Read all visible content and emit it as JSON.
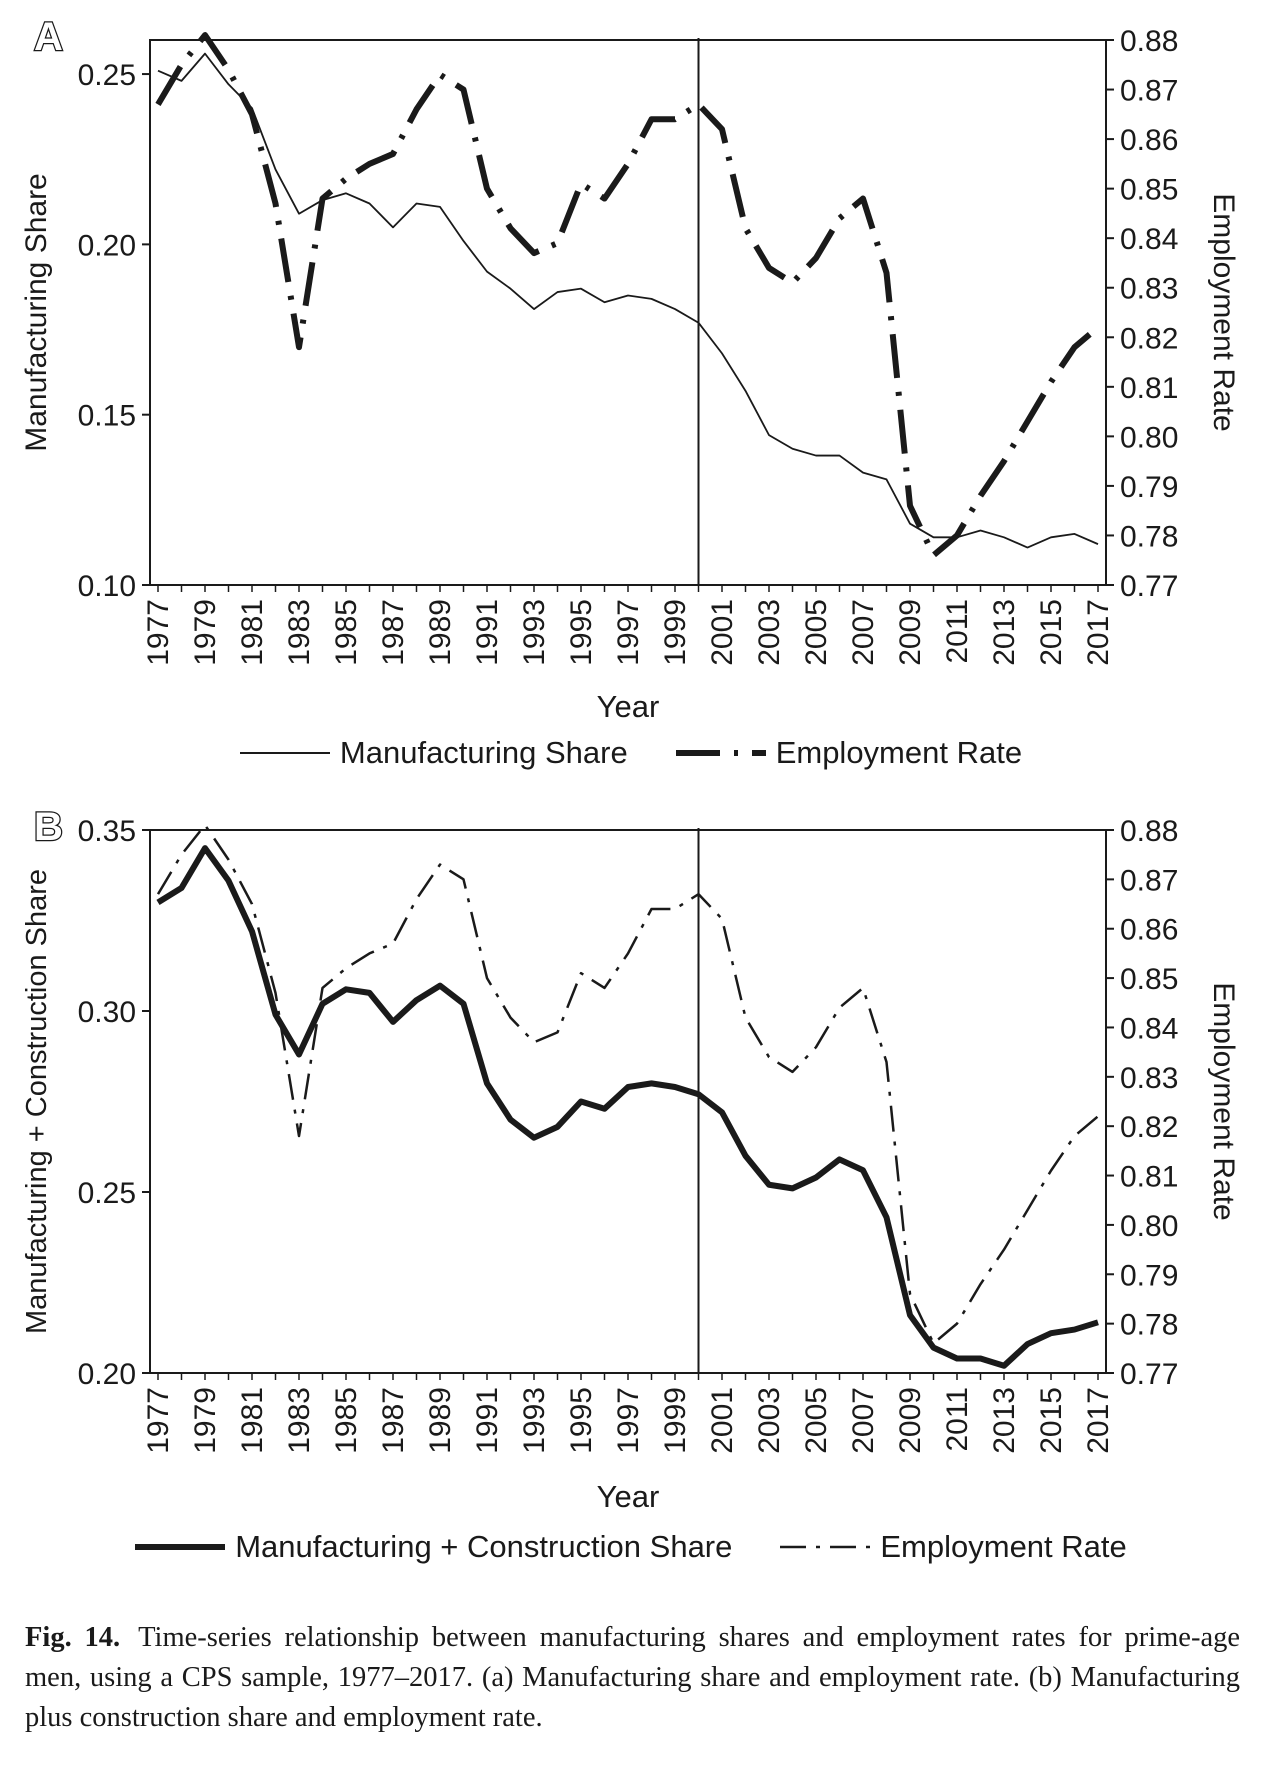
{
  "panel_a": {
    "letter": "A",
    "xlabel": "Year",
    "ylabel_left": "Manufacturing Share",
    "ylabel_right": "Employment Rate",
    "legend": [
      "Manufacturing Share",
      "Employment Rate"
    ]
  },
  "panel_b": {
    "letter": "B",
    "xlabel": "Year",
    "ylabel_left": "Manufacturing + Construction Share",
    "ylabel_right": "Employment Rate",
    "legend": [
      "Manufacturing + Construction Share",
      "Employment Rate"
    ]
  },
  "caption": {
    "label": "Fig. 14.",
    "text": "Time-series relationship between manufacturing shares and employment rates for prime-age men, using a CPS sample, 1977–2017. (a) Manufacturing share and employment rate. (b) Manufacturing plus construction share and employment rate."
  },
  "chart_data": [
    {
      "type": "line",
      "panel": "A",
      "xlabel": "Year",
      "x": [
        1977,
        1978,
        1979,
        1980,
        1981,
        1982,
        1983,
        1984,
        1985,
        1986,
        1987,
        1988,
        1989,
        1990,
        1991,
        1992,
        1993,
        1994,
        1995,
        1996,
        1997,
        1998,
        1999,
        2000,
        2001,
        2002,
        2003,
        2004,
        2005,
        2006,
        2007,
        2008,
        2009,
        2010,
        2011,
        2012,
        2013,
        2014,
        2015,
        2016,
        2017
      ],
      "xticks": [
        "1977",
        "1979",
        "1981",
        "1983",
        "1985",
        "1987",
        "1989",
        "1991",
        "1993",
        "1995",
        "1997",
        "1999",
        "2001",
        "2003",
        "2005",
        "2007",
        "2009",
        "2011",
        "2013",
        "2015",
        "2017"
      ],
      "left_axis": {
        "label": "Manufacturing Share",
        "ylim": [
          0.1,
          0.26
        ],
        "ticks": [
          "0.10",
          "0.15",
          "0.20",
          "0.25"
        ]
      },
      "right_axis": {
        "label": "Employment Rate",
        "ylim": [
          0.77,
          0.88
        ],
        "ticks": [
          "0.77",
          "0.78",
          "0.79",
          "0.80",
          "0.81",
          "0.82",
          "0.83",
          "0.84",
          "0.85",
          "0.86",
          "0.87",
          "0.88"
        ]
      },
      "vline_x": 2000,
      "series": [
        {
          "name": "Manufacturing Share",
          "axis": "left",
          "style": "solid-thin",
          "values": [
            0.251,
            0.248,
            0.256,
            0.247,
            0.24,
            0.222,
            0.209,
            0.213,
            0.215,
            0.212,
            0.205,
            0.212,
            0.211,
            0.201,
            0.192,
            0.187,
            0.181,
            0.186,
            0.187,
            0.183,
            0.185,
            0.184,
            0.181,
            0.177,
            0.168,
            0.157,
            0.144,
            0.14,
            0.138,
            0.138,
            0.133,
            0.131,
            0.118,
            0.114,
            0.114,
            0.116,
            0.114,
            0.111,
            0.114,
            0.115,
            0.112
          ]
        },
        {
          "name": "Employment Rate",
          "axis": "right",
          "style": "dash-dot-thick",
          "values": [
            0.867,
            0.875,
            0.881,
            0.874,
            0.865,
            0.847,
            0.818,
            0.848,
            0.852,
            0.855,
            0.857,
            0.866,
            0.873,
            0.87,
            0.85,
            0.842,
            0.837,
            0.839,
            0.851,
            0.848,
            0.855,
            0.864,
            0.864,
            0.867,
            0.862,
            0.842,
            0.834,
            0.831,
            0.836,
            0.844,
            0.848,
            0.833,
            0.786,
            0.776,
            0.78,
            0.788,
            0.795,
            0.803,
            0.811,
            0.818,
            0.822
          ]
        }
      ]
    },
    {
      "type": "line",
      "panel": "B",
      "xlabel": "Year",
      "x": [
        1977,
        1978,
        1979,
        1980,
        1981,
        1982,
        1983,
        1984,
        1985,
        1986,
        1987,
        1988,
        1989,
        1990,
        1991,
        1992,
        1993,
        1994,
        1995,
        1996,
        1997,
        1998,
        1999,
        2000,
        2001,
        2002,
        2003,
        2004,
        2005,
        2006,
        2007,
        2008,
        2009,
        2010,
        2011,
        2012,
        2013,
        2014,
        2015,
        2016,
        2017
      ],
      "xticks": [
        "1977",
        "1979",
        "1981",
        "1983",
        "1985",
        "1987",
        "1989",
        "1991",
        "1993",
        "1995",
        "1997",
        "1999",
        "2001",
        "2003",
        "2005",
        "2007",
        "2009",
        "2011",
        "2013",
        "2015",
        "2017"
      ],
      "left_axis": {
        "label": "Manufacturing + Construction Share",
        "ylim": [
          0.2,
          0.35
        ],
        "ticks": [
          "0.20",
          "0.25",
          "0.30",
          "0.35"
        ]
      },
      "right_axis": {
        "label": "Employment Rate",
        "ylim": [
          0.77,
          0.88
        ],
        "ticks": [
          "0.77",
          "0.78",
          "0.79",
          "0.80",
          "0.81",
          "0.82",
          "0.83",
          "0.84",
          "0.85",
          "0.86",
          "0.87",
          "0.88"
        ]
      },
      "vline_x": 2000,
      "series": [
        {
          "name": "Manufacturing + Construction Share",
          "axis": "left",
          "style": "solid-thick",
          "values": [
            0.33,
            0.334,
            0.345,
            0.336,
            0.322,
            0.299,
            0.288,
            0.302,
            0.306,
            0.305,
            0.297,
            0.303,
            0.307,
            0.302,
            0.28,
            0.27,
            0.265,
            0.268,
            0.275,
            0.273,
            0.279,
            0.28,
            0.279,
            0.277,
            0.272,
            0.26,
            0.252,
            0.251,
            0.254,
            0.259,
            0.256,
            0.243,
            0.216,
            0.207,
            0.204,
            0.204,
            0.202,
            0.208,
            0.211,
            0.212,
            0.214
          ]
        },
        {
          "name": "Employment Rate",
          "axis": "right",
          "style": "dash-dot-thin",
          "values": [
            0.867,
            0.875,
            0.881,
            0.874,
            0.865,
            0.847,
            0.818,
            0.848,
            0.852,
            0.855,
            0.857,
            0.866,
            0.873,
            0.87,
            0.85,
            0.842,
            0.837,
            0.839,
            0.851,
            0.848,
            0.855,
            0.864,
            0.864,
            0.867,
            0.862,
            0.842,
            0.834,
            0.831,
            0.836,
            0.844,
            0.848,
            0.833,
            0.786,
            0.776,
            0.78,
            0.788,
            0.795,
            0.803,
            0.811,
            0.818,
            0.822
          ]
        }
      ]
    }
  ]
}
